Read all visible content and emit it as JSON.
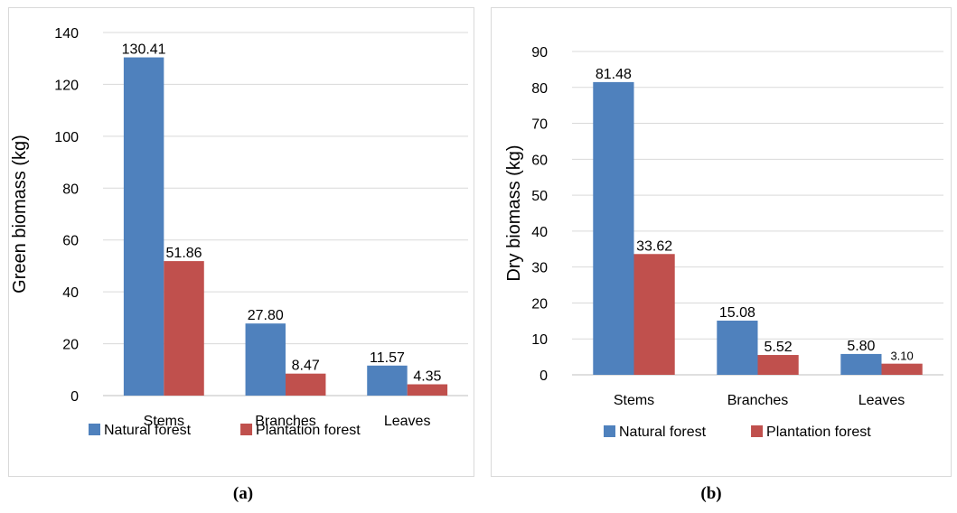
{
  "chart_data": [
    {
      "type": "bar",
      "categories": [
        "Stems",
        "Branches",
        "Leaves"
      ],
      "series": [
        {
          "name": "Natural forest",
          "values": [
            130.41,
            27.8,
            11.57
          ],
          "labels": [
            "130.41",
            "27.80",
            "11.57"
          ],
          "color": "#4f81bd"
        },
        {
          "name": "Plantation forest",
          "values": [
            51.86,
            8.47,
            4.35
          ],
          "labels": [
            "51.86",
            "8.47",
            "4.35"
          ],
          "color": "#c0504d"
        }
      ],
      "ylabel": "Green biomass (kg)",
      "ylim": [
        0,
        140
      ],
      "yticks": [
        0,
        20,
        40,
        60,
        80,
        100,
        120,
        140
      ],
      "grid": true,
      "legend": "bottom",
      "caption": "(a)"
    },
    {
      "type": "bar",
      "categories": [
        "Stems",
        "Branches",
        "Leaves"
      ],
      "series": [
        {
          "name": "Natural forest",
          "values": [
            81.48,
            15.08,
            5.8
          ],
          "labels": [
            "81.48",
            "15.08",
            "5.80"
          ],
          "color": "#4f81bd"
        },
        {
          "name": "Plantation forest",
          "values": [
            33.62,
            5.52,
            3.1
          ],
          "labels": [
            "33.62",
            "5.52",
            "3.10"
          ],
          "color": "#c0504d"
        }
      ],
      "ylabel": "Dry biomass (kg)",
      "ylim": [
        0,
        90
      ],
      "yticks": [
        0,
        10,
        20,
        30,
        40,
        50,
        60,
        70,
        80,
        90
      ],
      "grid": true,
      "legend": "bottom",
      "caption": "(b)"
    }
  ]
}
